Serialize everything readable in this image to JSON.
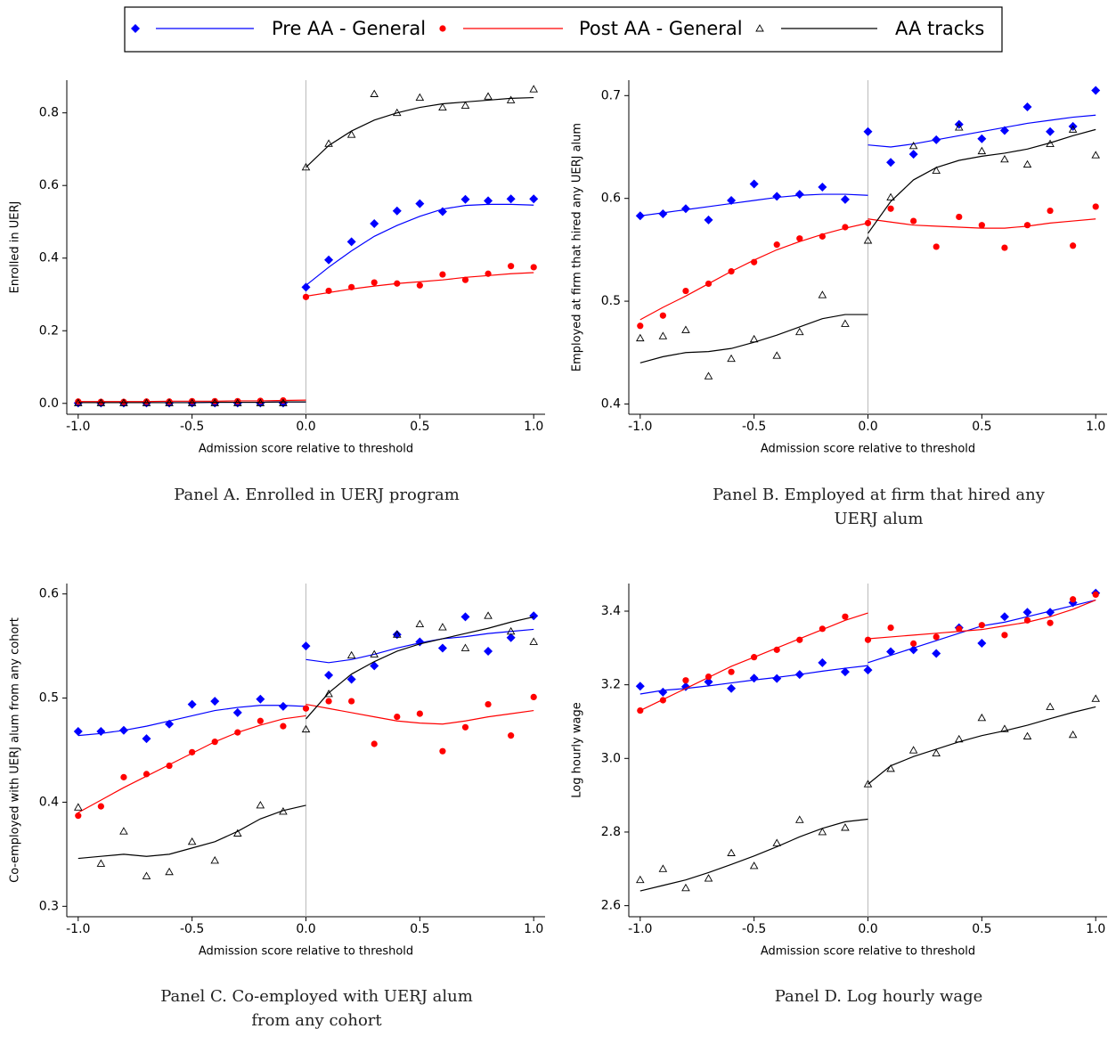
{
  "legend": {
    "series": [
      {
        "name": "Pre AA - General",
        "color": "#0000ff",
        "marker": "diamond"
      },
      {
        "name": "Post AA - General",
        "color": "#ff0000",
        "marker": "circle"
      },
      {
        "name": "AA tracks",
        "color": "#000000",
        "marker": "triangle"
      }
    ]
  },
  "chart_data": [
    {
      "type": "scatter",
      "title": "Panel A. Enrolled in UERJ program",
      "ylabel": "Enrolled in UERJ",
      "xlabel": "Admission score relative to threshold",
      "x": [
        -1.0,
        -0.9,
        -0.8,
        -0.7,
        -0.6,
        -0.5,
        -0.4,
        -0.3,
        -0.2,
        -0.1,
        0.0,
        0.1,
        0.2,
        0.3,
        0.4,
        0.5,
        0.6,
        0.7,
        0.8,
        0.9,
        1.0
      ],
      "xlim": [
        -1.05,
        1.05
      ],
      "xticks": [
        {
          "value": -1.0,
          "label": "-1.0"
        },
        -0.5,
        {
          "value": 0.0,
          "label": "0.0"
        },
        0.5,
        {
          "value": 1.0,
          "label": "1.0"
        }
      ],
      "ylim": [
        -0.03,
        0.89
      ],
      "yticks": [
        {
          "value": 0.0,
          "label": "0.0"
        },
        0.2,
        0.4,
        0.6,
        0.8
      ],
      "series": [
        {
          "values": [
            0.001,
            0.001,
            0.001,
            0.001,
            0.001,
            0.001,
            0.001,
            0.001,
            0.001,
            0.001,
            0.32,
            0.395,
            0.445,
            0.495,
            0.53,
            0.55,
            0.528,
            0.562,
            0.558,
            0.563,
            0.563
          ],
          "fit_left": [
            0.002,
            0.002,
            0.002,
            0.002,
            0.002,
            0.002,
            0.003,
            0.003,
            0.003,
            0.004,
            0.004
          ],
          "fit_right": [
            0.325,
            0.375,
            0.42,
            0.46,
            0.49,
            0.515,
            0.535,
            0.545,
            0.548,
            0.548,
            0.546
          ]
        },
        {
          "values": [
            0.005,
            0.004,
            0.004,
            0.005,
            0.005,
            0.006,
            0.006,
            0.006,
            0.007,
            0.008,
            0.293,
            0.31,
            0.32,
            0.333,
            0.33,
            0.325,
            0.355,
            0.34,
            0.357,
            0.378,
            0.375
          ],
          "fit_left": [
            0.005,
            0.005,
            0.005,
            0.005,
            0.006,
            0.006,
            0.006,
            0.007,
            0.007,
            0.008,
            0.009
          ],
          "fit_right": [
            0.295,
            0.305,
            0.315,
            0.323,
            0.33,
            0.335,
            0.34,
            0.347,
            0.352,
            0.357,
            0.36
          ]
        },
        {
          "values": [
            0.001,
            0.001,
            0.001,
            0.001,
            0.001,
            0.001,
            0.001,
            0.001,
            0.001,
            0.001,
            0.65,
            0.715,
            0.74,
            0.852,
            0.8,
            0.842,
            0.815,
            0.82,
            0.845,
            0.835,
            0.865
          ],
          "fit_left": [
            0.002,
            0.002,
            0.002,
            0.002,
            0.002,
            0.002,
            0.003,
            0.003,
            0.003,
            0.004,
            0.004
          ],
          "fit_right": [
            0.65,
            0.71,
            0.75,
            0.78,
            0.8,
            0.815,
            0.825,
            0.83,
            0.835,
            0.84,
            0.842
          ]
        }
      ]
    },
    {
      "type": "scatter",
      "title": "Panel B. Employed at firm that hired any UERJ alum",
      "ylabel": "Employed at firm that hired any UERJ alum",
      "xlabel": "Admission score relative to threshold",
      "x": [
        -1.0,
        -0.9,
        -0.8,
        -0.7,
        -0.6,
        -0.5,
        -0.4,
        -0.3,
        -0.2,
        -0.1,
        0.0,
        0.1,
        0.2,
        0.3,
        0.4,
        0.5,
        0.6,
        0.7,
        0.8,
        0.9,
        1.0
      ],
      "xlim": [
        -1.05,
        1.05
      ],
      "xticks": [
        {
          "value": -1.0,
          "label": "-1.0"
        },
        -0.5,
        {
          "value": 0.0,
          "label": "0.0"
        },
        0.5,
        {
          "value": 1.0,
          "label": "1.0"
        }
      ],
      "ylim": [
        0.39,
        0.715
      ],
      "yticks": [
        0.4,
        0.5,
        0.6,
        0.7
      ],
      "series": [
        {
          "values": [
            0.583,
            0.585,
            0.59,
            0.579,
            0.598,
            0.614,
            0.602,
            0.604,
            0.611,
            0.599,
            0.665,
            0.635,
            0.643,
            0.657,
            0.672,
            0.658,
            0.666,
            0.689,
            0.665,
            0.67,
            0.705
          ],
          "fit_left": [
            0.583,
            0.586,
            0.589,
            0.592,
            0.595,
            0.598,
            0.601,
            0.603,
            0.604,
            0.604,
            0.603
          ],
          "fit_right": [
            0.652,
            0.65,
            0.653,
            0.657,
            0.661,
            0.665,
            0.669,
            0.673,
            0.676,
            0.679,
            0.681
          ]
        },
        {
          "values": [
            0.476,
            0.486,
            0.51,
            0.517,
            0.529,
            0.538,
            0.555,
            0.561,
            0.563,
            0.572,
            0.576,
            0.59,
            0.578,
            0.553,
            0.582,
            0.574,
            0.552,
            0.574,
            0.588,
            0.554,
            0.592
          ],
          "fit_left": [
            0.482,
            0.494,
            0.505,
            0.517,
            0.529,
            0.54,
            0.55,
            0.558,
            0.565,
            0.571,
            0.576
          ],
          "fit_right": [
            0.58,
            0.577,
            0.574,
            0.573,
            0.572,
            0.571,
            0.571,
            0.573,
            0.576,
            0.578,
            0.58
          ]
        },
        {
          "values": [
            0.464,
            0.466,
            0.472,
            0.427,
            0.444,
            0.463,
            0.447,
            0.47,
            0.506,
            0.478,
            0.559,
            0.601,
            0.651,
            0.627,
            0.669,
            0.646,
            0.638,
            0.633,
            0.653,
            0.667,
            0.642
          ],
          "fit_left": [
            0.44,
            0.446,
            0.45,
            0.451,
            0.454,
            0.46,
            0.467,
            0.475,
            0.483,
            0.487,
            0.487
          ],
          "fit_right": [
            0.566,
            0.597,
            0.618,
            0.63,
            0.637,
            0.641,
            0.644,
            0.648,
            0.654,
            0.661,
            0.667
          ]
        }
      ]
    },
    {
      "type": "scatter",
      "title": "Panel C. Co-employed with UERJ alum from any cohort",
      "ylabel": "Co-employed with UERJ alum from any cohort",
      "xlabel": "Admission score relative to threshold",
      "x": [
        -1.0,
        -0.9,
        -0.8,
        -0.7,
        -0.6,
        -0.5,
        -0.4,
        -0.3,
        -0.2,
        -0.1,
        0.0,
        0.1,
        0.2,
        0.3,
        0.4,
        0.5,
        0.6,
        0.7,
        0.8,
        0.9,
        1.0
      ],
      "xlim": [
        -1.05,
        1.05
      ],
      "xticks": [
        {
          "value": -1.0,
          "label": "-1.0"
        },
        -0.5,
        {
          "value": 0.0,
          "label": "0.0"
        },
        0.5,
        {
          "value": 1.0,
          "label": "1.0"
        }
      ],
      "ylim": [
        0.29,
        0.61
      ],
      "yticks": [
        0.3,
        0.4,
        0.5,
        0.6
      ],
      "series": [
        {
          "values": [
            0.468,
            0.468,
            0.469,
            0.461,
            0.475,
            0.494,
            0.497,
            0.486,
            0.499,
            0.492,
            0.55,
            0.522,
            0.518,
            0.531,
            0.561,
            0.554,
            0.548,
            0.578,
            0.545,
            0.558,
            0.579
          ],
          "fit_left": [
            0.464,
            0.466,
            0.469,
            0.473,
            0.478,
            0.483,
            0.488,
            0.491,
            0.493,
            0.493,
            0.492
          ],
          "fit_right": [
            0.537,
            0.534,
            0.537,
            0.542,
            0.548,
            0.553,
            0.557,
            0.559,
            0.562,
            0.564,
            0.566
          ]
        },
        {
          "values": [
            0.387,
            0.396,
            0.424,
            0.427,
            0.435,
            0.448,
            0.458,
            0.467,
            0.478,
            0.473,
            0.49,
            0.497,
            0.497,
            0.456,
            0.482,
            0.485,
            0.449,
            0.472,
            0.494,
            0.464,
            0.501
          ],
          "fit_left": [
            0.39,
            0.402,
            0.414,
            0.425,
            0.436,
            0.447,
            0.458,
            0.467,
            0.474,
            0.48,
            0.483
          ],
          "fit_right": [
            0.494,
            0.49,
            0.486,
            0.482,
            0.478,
            0.476,
            0.475,
            0.478,
            0.482,
            0.485,
            0.488
          ]
        },
        {
          "values": [
            0.395,
            0.341,
            0.372,
            0.329,
            0.333,
            0.362,
            0.344,
            0.37,
            0.397,
            0.391,
            0.47,
            0.504,
            0.541,
            0.542,
            0.561,
            0.571,
            0.568,
            0.548,
            0.579,
            0.564,
            0.554
          ],
          "fit_left": [
            0.346,
            0.348,
            0.35,
            0.348,
            0.35,
            0.356,
            0.362,
            0.372,
            0.384,
            0.392,
            0.397
          ],
          "fit_right": [
            0.48,
            0.505,
            0.523,
            0.535,
            0.545,
            0.552,
            0.557,
            0.562,
            0.567,
            0.573,
            0.578
          ]
        }
      ]
    },
    {
      "type": "scatter",
      "title": "Panel D. Log hourly wage",
      "ylabel": "Log hourly wage",
      "xlabel": "Admission score relative to threshold",
      "x": [
        -1.0,
        -0.9,
        -0.8,
        -0.7,
        -0.6,
        -0.5,
        -0.4,
        -0.3,
        -0.2,
        -0.1,
        0.0,
        0.1,
        0.2,
        0.3,
        0.4,
        0.5,
        0.6,
        0.7,
        0.8,
        0.9,
        1.0
      ],
      "xlim": [
        -1.05,
        1.05
      ],
      "xticks": [
        {
          "value": -1.0,
          "label": "-1.0"
        },
        -0.5,
        {
          "value": 0.0,
          "label": "0.0"
        },
        0.5,
        {
          "value": 1.0,
          "label": "1.0"
        }
      ],
      "ylim": [
        2.57,
        3.475
      ],
      "yticks": [
        2.6,
        2.8,
        {
          "value": 3.0,
          "label": "3.0"
        },
        3.2,
        3.4
      ],
      "series": [
        {
          "values": [
            3.196,
            3.18,
            3.195,
            3.208,
            3.19,
            3.218,
            3.217,
            3.228,
            3.26,
            3.235,
            3.24,
            3.29,
            3.295,
            3.285,
            3.355,
            3.313,
            3.385,
            3.397,
            3.397,
            3.423,
            3.449
          ],
          "fit_left": [
            3.175,
            3.185,
            3.19,
            3.197,
            3.205,
            3.213,
            3.22,
            3.228,
            3.237,
            3.245,
            3.252
          ],
          "fit_right": [
            3.26,
            3.28,
            3.3,
            3.32,
            3.34,
            3.36,
            3.37,
            3.385,
            3.4,
            3.415,
            3.43
          ]
        },
        {
          "values": [
            3.13,
            3.158,
            3.212,
            3.222,
            3.235,
            3.275,
            3.295,
            3.322,
            3.352,
            3.385,
            3.322,
            3.355,
            3.312,
            3.33,
            3.352,
            3.362,
            3.335,
            3.375,
            3.368,
            3.432,
            3.445
          ],
          "fit_left": [
            3.13,
            3.16,
            3.19,
            3.22,
            3.25,
            3.275,
            3.3,
            3.325,
            3.35,
            3.375,
            3.395
          ],
          "fit_right": [
            3.325,
            3.33,
            3.335,
            3.34,
            3.345,
            3.35,
            3.36,
            3.37,
            3.385,
            3.405,
            3.43
          ]
        },
        {
          "values": [
            2.67,
            2.7,
            2.648,
            2.674,
            2.743,
            2.708,
            2.77,
            2.833,
            2.8,
            2.812,
            2.93,
            2.972,
            3.022,
            3.014,
            3.052,
            3.11,
            3.08,
            3.06,
            3.14,
            3.064,
            3.162
          ],
          "fit_left": [
            2.64,
            2.655,
            2.67,
            2.69,
            2.712,
            2.735,
            2.76,
            2.787,
            2.81,
            2.828,
            2.835
          ],
          "fit_right": [
            2.93,
            2.98,
            3.005,
            3.025,
            3.045,
            3.062,
            3.075,
            3.09,
            3.108,
            3.125,
            3.14
          ]
        }
      ]
    }
  ]
}
